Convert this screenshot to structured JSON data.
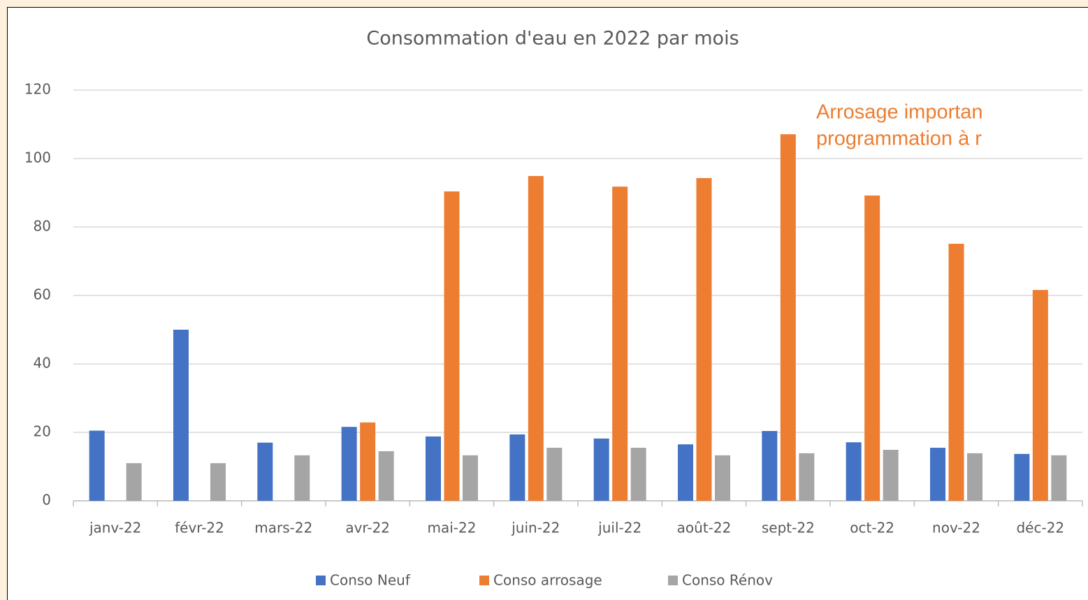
{
  "chart_data": {
    "type": "bar",
    "title": "Consommation d'eau en 2022 par mois",
    "annotation": [
      "Arrosage importan",
      "programmation à r"
    ],
    "annotation_color": "#ed7d31",
    "categories": [
      "janv-22",
      "févr-22",
      "mars-22",
      "avr-22",
      "mai-22",
      "juin-22",
      "juil-22",
      "août-22",
      "sept-22",
      "oct-22",
      "nov-22",
      "déc-22"
    ],
    "series": [
      {
        "name": "Conso Neuf",
        "color": "#4472c4",
        "values": [
          20.5,
          50,
          17,
          21.6,
          18.8,
          19.4,
          18.2,
          16.5,
          20.4,
          17.1,
          15.5,
          13.7
        ]
      },
      {
        "name": "Conso arrosage",
        "color": "#ed7d31",
        "values": [
          null,
          null,
          null,
          22.9,
          90.4,
          94.9,
          91.8,
          94.3,
          107.1,
          89.2,
          75.1,
          61.6
        ]
      },
      {
        "name": "Conso Rénov",
        "color": "#a5a5a5",
        "values": [
          11,
          11,
          13.3,
          14.5,
          13.3,
          15.5,
          15.5,
          13.3,
          13.9,
          14.9,
          13.9,
          13.3
        ]
      }
    ],
    "ylim": [
      0,
      120
    ],
    "yticks": [
      0,
      20,
      40,
      60,
      80,
      100,
      120
    ],
    "grid": true,
    "legend": "bottom"
  }
}
